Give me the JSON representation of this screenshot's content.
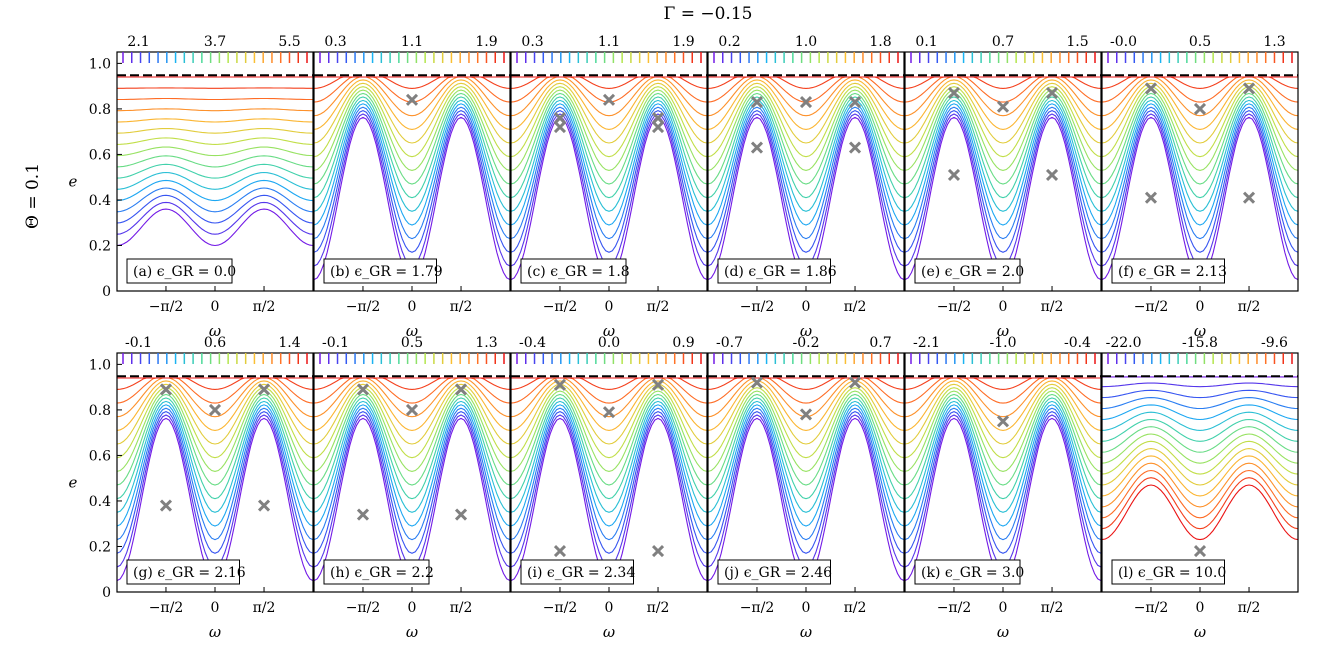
{
  "figure": {
    "title": "Γ = −0.15",
    "row_label": "Θ = 0.1",
    "x_axis_label": "ω",
    "y_axis_label": "e",
    "y_ticks": [
      "0",
      "0.2",
      "0.4",
      "0.6",
      "0.8",
      "1.0"
    ],
    "x_ticks": [
      "−π/2",
      "0",
      "π/2"
    ]
  },
  "chart_data": [
    {
      "type": "contour",
      "panel": "(a)",
      "label": "(a) ϵ_GR = 0.0",
      "eps_gr": 0.0,
      "colorbar_ticks": [
        "2.1",
        "3.7",
        "5.5"
      ],
      "ylim": [
        0,
        1.05
      ],
      "xlim": [
        -3.14,
        3.14
      ],
      "saddles": [],
      "centers": []
    },
    {
      "type": "contour",
      "panel": "(b)",
      "label": "(b) ϵ_GR = 1.79",
      "eps_gr": 1.79,
      "colorbar_ticks": [
        "0.3",
        "1.1",
        "1.9"
      ],
      "ylim": [
        0,
        1.05
      ],
      "xlim": [
        -3.14,
        3.14
      ],
      "saddles": [],
      "centers": [
        {
          "x": 0,
          "y": 0.84
        }
      ]
    },
    {
      "type": "contour",
      "panel": "(c)",
      "label": "(c) ϵ_GR = 1.8",
      "eps_gr": 1.8,
      "colorbar_ticks": [
        "0.3",
        "1.1",
        "1.9"
      ],
      "ylim": [
        0,
        1.05
      ],
      "xlim": [
        -3.14,
        3.14
      ],
      "saddles": [
        {
          "x": -1.571,
          "y": 0.72
        },
        {
          "x": 1.571,
          "y": 0.72
        },
        {
          "x": -1.571,
          "y": 0.76
        },
        {
          "x": 1.571,
          "y": 0.76
        }
      ],
      "centers": [
        {
          "x": 0,
          "y": 0.84
        }
      ]
    },
    {
      "type": "contour",
      "panel": "(d)",
      "label": "(d) ϵ_GR = 1.86",
      "eps_gr": 1.86,
      "colorbar_ticks": [
        "0.2",
        "1.0",
        "1.8"
      ],
      "ylim": [
        0,
        1.05
      ],
      "xlim": [
        -3.14,
        3.14
      ],
      "saddles": [
        {
          "x": -1.571,
          "y": 0.63
        },
        {
          "x": 1.571,
          "y": 0.63
        },
        {
          "x": -1.571,
          "y": 0.83
        },
        {
          "x": 1.571,
          "y": 0.83
        }
      ],
      "centers": [
        {
          "x": 0,
          "y": 0.83
        }
      ]
    },
    {
      "type": "contour",
      "panel": "(e)",
      "label": "(e) ϵ_GR = 2.0",
      "eps_gr": 2.0,
      "colorbar_ticks": [
        "0.1",
        "0.7",
        "1.5"
      ],
      "ylim": [
        0,
        1.05
      ],
      "xlim": [
        -3.14,
        3.14
      ],
      "saddles": [
        {
          "x": -1.571,
          "y": 0.51
        },
        {
          "x": 1.571,
          "y": 0.51
        }
      ],
      "centers": [
        {
          "x": 0,
          "y": 0.81
        },
        {
          "x": -1.571,
          "y": 0.87
        },
        {
          "x": 1.571,
          "y": 0.87
        }
      ]
    },
    {
      "type": "contour",
      "panel": "(f)",
      "label": "(f) ϵ_GR = 2.13",
      "eps_gr": 2.13,
      "colorbar_ticks": [
        "-0.0",
        "0.5",
        "1.3"
      ],
      "ylim": [
        0,
        1.05
      ],
      "xlim": [
        -3.14,
        3.14
      ],
      "saddles": [
        {
          "x": -1.571,
          "y": 0.41
        },
        {
          "x": 1.571,
          "y": 0.41
        }
      ],
      "centers": [
        {
          "x": 0,
          "y": 0.8
        },
        {
          "x": -1.571,
          "y": 0.89
        },
        {
          "x": 1.571,
          "y": 0.89
        }
      ]
    },
    {
      "type": "contour",
      "panel": "(g)",
      "label": "(g) ϵ_GR = 2.16",
      "eps_gr": 2.16,
      "colorbar_ticks": [
        "-0.1",
        "0.6",
        "1.4"
      ],
      "ylim": [
        0,
        1.05
      ],
      "xlim": [
        -3.14,
        3.14
      ],
      "saddles": [
        {
          "x": -1.571,
          "y": 0.38
        },
        {
          "x": 1.571,
          "y": 0.38
        }
      ],
      "centers": [
        {
          "x": 0,
          "y": 0.8
        },
        {
          "x": -1.571,
          "y": 0.89
        },
        {
          "x": 1.571,
          "y": 0.89
        }
      ]
    },
    {
      "type": "contour",
      "panel": "(h)",
      "label": "(h) ϵ_GR = 2.2",
      "eps_gr": 2.2,
      "colorbar_ticks": [
        "-0.1",
        "0.5",
        "1.3"
      ],
      "ylim": [
        0,
        1.05
      ],
      "xlim": [
        -3.14,
        3.14
      ],
      "saddles": [
        {
          "x": -1.571,
          "y": 0.34
        },
        {
          "x": 1.571,
          "y": 0.34
        }
      ],
      "centers": [
        {
          "x": 0,
          "y": 0.8
        },
        {
          "x": -1.571,
          "y": 0.89
        },
        {
          "x": 1.571,
          "y": 0.89
        }
      ]
    },
    {
      "type": "contour",
      "panel": "(i)",
      "label": "(i) ϵ_GR = 2.34",
      "eps_gr": 2.34,
      "colorbar_ticks": [
        "-0.4",
        "0.0",
        "0.9"
      ],
      "ylim": [
        0,
        1.05
      ],
      "xlim": [
        -3.14,
        3.14
      ],
      "saddles": [
        {
          "x": -1.571,
          "y": 0.18
        },
        {
          "x": 1.571,
          "y": 0.18
        }
      ],
      "centers": [
        {
          "x": 0,
          "y": 0.79
        },
        {
          "x": -1.571,
          "y": 0.91
        },
        {
          "x": 1.571,
          "y": 0.91
        }
      ]
    },
    {
      "type": "contour",
      "panel": "(j)",
      "label": "(j) ϵ_GR = 2.46",
      "eps_gr": 2.46,
      "colorbar_ticks": [
        "-0.7",
        "-0.2",
        "0.7"
      ],
      "ylim": [
        0,
        1.05
      ],
      "xlim": [
        -3.14,
        3.14
      ],
      "saddles": [],
      "centers": [
        {
          "x": 0,
          "y": 0.78
        },
        {
          "x": -1.571,
          "y": 0.92
        },
        {
          "x": 1.571,
          "y": 0.92
        }
      ]
    },
    {
      "type": "contour",
      "panel": "(k)",
      "label": "(k) ϵ_GR = 3.0",
      "eps_gr": 3.0,
      "colorbar_ticks": [
        "-2.1",
        "-1.0",
        "-0.4"
      ],
      "ylim": [
        0,
        1.05
      ],
      "xlim": [
        -3.14,
        3.14
      ],
      "saddles": [],
      "centers": [
        {
          "x": 0,
          "y": 0.75
        }
      ]
    },
    {
      "type": "contour",
      "panel": "(l)",
      "label": "(l) ϵ_GR = 10.0",
      "eps_gr": 10.0,
      "colorbar_ticks": [
        "-22.0",
        "-15.8",
        "-9.6"
      ],
      "ylim": [
        0,
        1.05
      ],
      "xlim": [
        -3.14,
        3.14
      ],
      "saddles": [],
      "centers": [
        {
          "x": 0,
          "y": 0.18
        }
      ]
    }
  ]
}
